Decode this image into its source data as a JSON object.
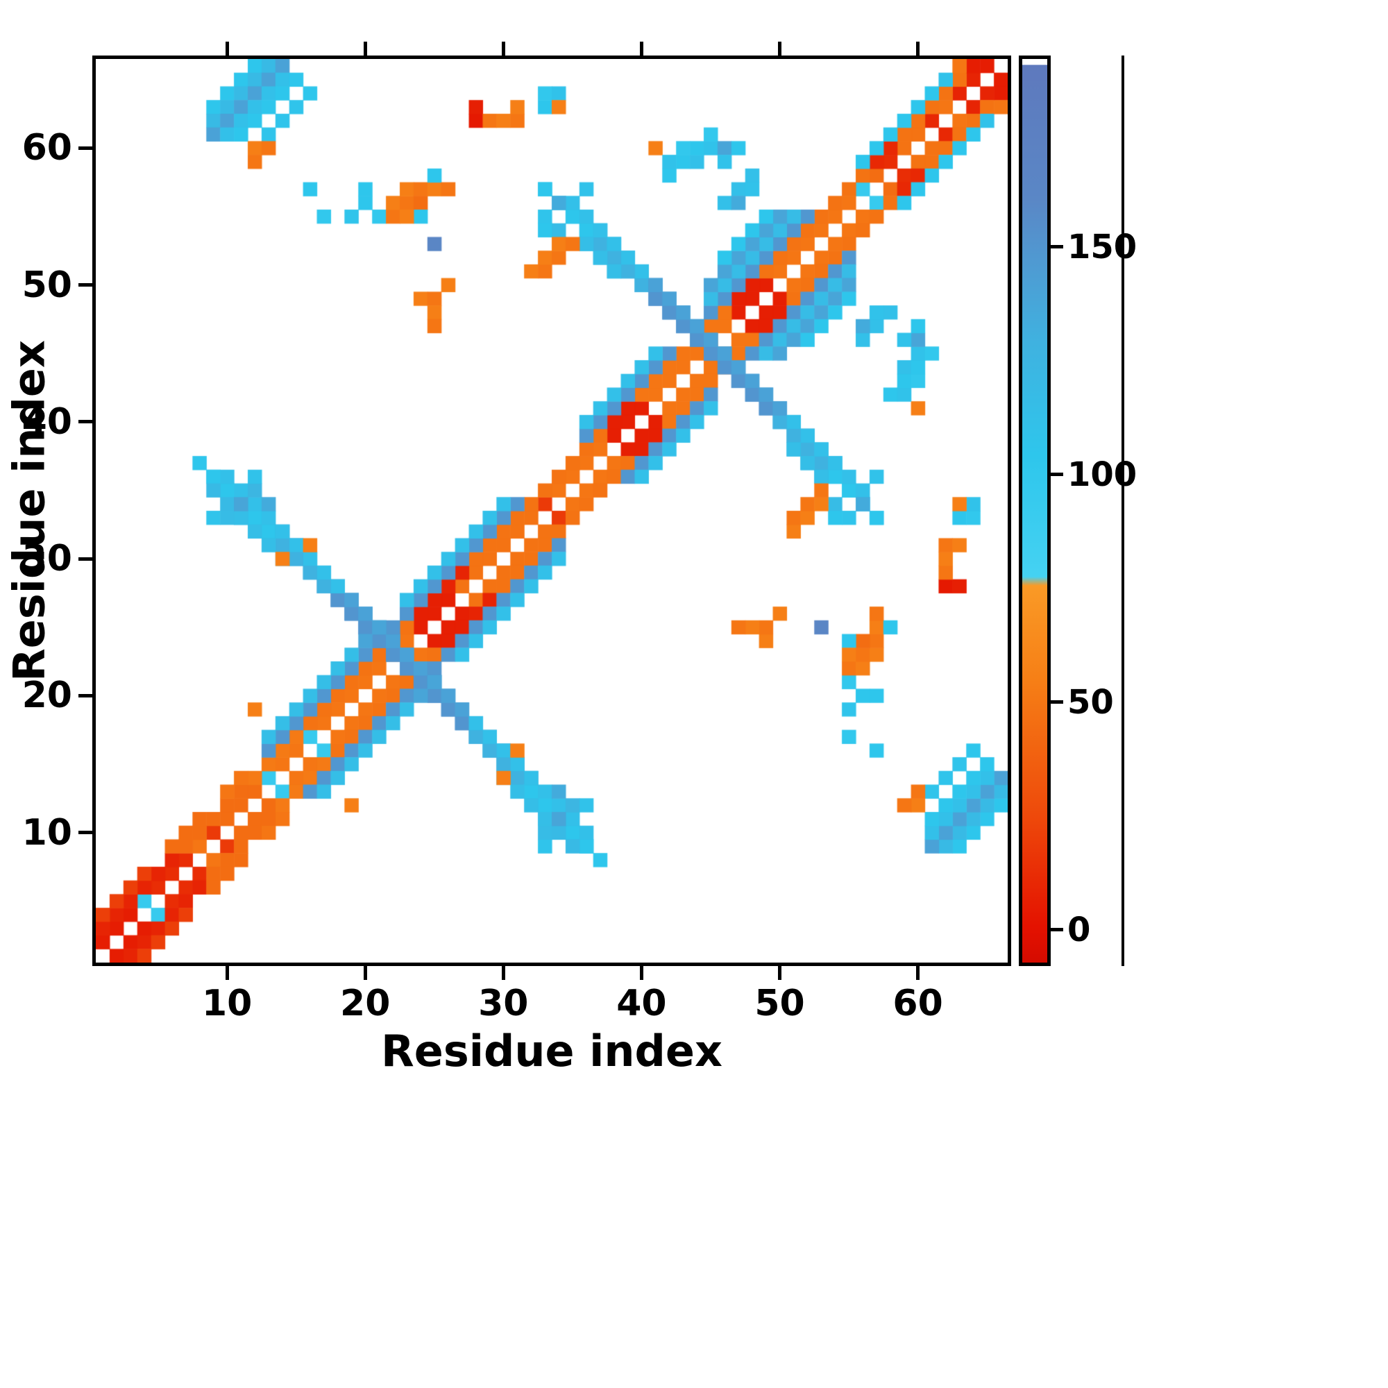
{
  "figure": {
    "background": "#ffffff",
    "frame_color": "#000000"
  },
  "chart_data": {
    "type": "heatmap",
    "title": "",
    "xlabel": "Residue index",
    "ylabel": "Residue index",
    "n_residues": 66,
    "x_range": [
      0.5,
      66.5
    ],
    "y_range": [
      0.5,
      66.5
    ],
    "x_ticks": [
      10,
      20,
      30,
      40,
      50,
      60
    ],
    "y_ticks": [
      10,
      20,
      30,
      40,
      50,
      60
    ],
    "grid": false,
    "symmetric": true,
    "background_value_color": "#ffffff",
    "colorbar": {
      "position": "right",
      "vmin": -8,
      "vmax": 192,
      "ticks": [
        0,
        50,
        100,
        150
      ]
    },
    "colormap_stops": [
      [
        -8,
        "#d50b00"
      ],
      [
        0,
        "#e41200"
      ],
      [
        25,
        "#ee4a0b"
      ],
      [
        55,
        "#f67f16"
      ],
      [
        76,
        "#fa9a26"
      ],
      [
        78,
        "#45d2f2"
      ],
      [
        105,
        "#2ec6ec"
      ],
      [
        130,
        "#3fb2e0"
      ],
      [
        148,
        "#4f9ad2"
      ],
      [
        162,
        "#5a87c6"
      ],
      [
        192,
        "#5e79bd"
      ]
    ],
    "cells": {
      "encoding": "runs: [type,i,j,n,value]; type 0=diagonal run (i+k,j+k), 1=antidiagonal run (i+k,j-k), 2=single point; matrix is symmetric, each cell mirrored across the diagonal",
      "runs": [
        [
          0,
          1,
          2,
          3,
          5
        ],
        [
          0,
          4,
          5,
          1,
          95
        ],
        [
          0,
          5,
          6,
          3,
          12
        ],
        [
          0,
          8,
          9,
          1,
          50
        ],
        [
          0,
          9,
          10,
          1,
          18
        ],
        [
          0,
          10,
          11,
          3,
          45
        ],
        [
          0,
          13,
          14,
          1,
          95
        ],
        [
          0,
          14,
          15,
          2,
          50
        ],
        [
          0,
          16,
          17,
          1,
          95
        ],
        [
          0,
          17,
          18,
          7,
          50
        ],
        [
          0,
          24,
          25,
          3,
          6
        ],
        [
          0,
          27,
          28,
          6,
          48
        ],
        [
          0,
          33,
          34,
          1,
          18
        ],
        [
          0,
          34,
          35,
          4,
          50
        ],
        [
          0,
          38,
          39,
          3,
          6
        ],
        [
          0,
          41,
          42,
          6,
          50
        ],
        [
          0,
          47,
          48,
          3,
          6
        ],
        [
          0,
          50,
          51,
          6,
          50
        ],
        [
          0,
          56,
          57,
          1,
          95
        ],
        [
          0,
          57,
          58,
          1,
          45
        ],
        [
          0,
          58,
          59,
          1,
          12
        ],
        [
          0,
          59,
          60,
          2,
          48
        ],
        [
          0,
          61,
          62,
          1,
          10
        ],
        [
          0,
          62,
          63,
          1,
          50
        ],
        [
          0,
          63,
          64,
          1,
          8
        ],
        [
          0,
          64,
          65,
          1,
          8
        ],
        [
          0,
          65,
          66,
          1,
          5
        ],
        [
          0,
          1,
          3,
          6,
          8
        ],
        [
          0,
          7,
          9,
          5,
          45
        ],
        [
          0,
          12,
          14,
          4,
          52
        ],
        [
          0,
          16,
          18,
          8,
          48
        ],
        [
          0,
          24,
          26,
          2,
          6
        ],
        [
          0,
          26,
          28,
          2,
          8
        ],
        [
          0,
          28,
          30,
          10,
          48
        ],
        [
          0,
          38,
          40,
          2,
          6
        ],
        [
          0,
          40,
          42,
          7,
          50
        ],
        [
          0,
          47,
          49,
          2,
          6
        ],
        [
          0,
          49,
          51,
          8,
          48
        ],
        [
          0,
          57,
          59,
          2,
          10
        ],
        [
          0,
          59,
          61,
          5,
          48
        ],
        [
          0,
          64,
          66,
          1,
          5
        ],
        [
          0,
          1,
          4,
          4,
          20
        ],
        [
          0,
          6,
          9,
          3,
          45
        ],
        [
          0,
          10,
          13,
          2,
          50
        ],
        [
          0,
          14,
          17,
          2,
          48
        ],
        [
          1,
          8,
          37,
          5,
          105
        ],
        [
          1,
          13,
          32,
          4,
          130
        ],
        [
          1,
          17,
          28,
          11,
          152
        ],
        [
          1,
          28,
          17,
          4,
          130
        ],
        [
          1,
          32,
          13,
          5,
          105
        ],
        [
          1,
          10,
          36,
          4,
          112
        ],
        [
          1,
          14,
          32,
          14,
          142
        ],
        [
          1,
          28,
          18,
          5,
          112
        ],
        [
          1,
          9,
          35,
          3,
          120
        ],
        [
          1,
          30,
          14,
          4,
          115
        ],
        [
          2,
          9,
          33,
          1,
          108
        ],
        [
          2,
          10,
          33,
          1,
          118
        ],
        [
          2,
          11,
          34,
          1,
          140
        ],
        [
          2,
          12,
          35,
          1,
          125
        ],
        [
          2,
          12,
          36,
          1,
          110
        ],
        [
          2,
          13,
          34,
          1,
          135
        ],
        [
          0,
          13,
          16,
          8,
          150
        ],
        [
          0,
          13,
          17,
          7,
          115
        ],
        [
          0,
          22,
          25,
          10,
          150
        ],
        [
          0,
          23,
          27,
          8,
          112
        ],
        [
          0,
          20,
          24,
          2,
          140
        ],
        [
          2,
          14,
          30,
          1,
          55
        ],
        [
          2,
          12,
          19,
          1,
          55
        ],
        [
          2,
          16,
          31,
          1,
          55
        ],
        [
          1,
          33,
          57,
          4,
          105
        ],
        [
          1,
          37,
          53,
          4,
          130
        ],
        [
          1,
          41,
          49,
          9,
          152
        ],
        [
          1,
          50,
          40,
          4,
          130
        ],
        [
          1,
          54,
          36,
          4,
          105
        ],
        [
          1,
          35,
          56,
          4,
          112
        ],
        [
          1,
          39,
          52,
          12,
          142
        ],
        [
          1,
          51,
          40,
          4,
          112
        ],
        [
          1,
          36,
          53,
          3,
          120
        ],
        [
          1,
          51,
          38,
          3,
          115
        ],
        [
          2,
          33,
          55,
          1,
          108
        ],
        [
          2,
          34,
          54,
          1,
          118
        ],
        [
          2,
          34,
          56,
          1,
          135
        ],
        [
          2,
          36,
          57,
          1,
          110
        ],
        [
          2,
          33,
          54,
          1,
          105
        ],
        [
          0,
          36,
          39,
          7,
          150
        ],
        [
          0,
          36,
          40,
          6,
          112
        ],
        [
          0,
          45,
          48,
          8,
          150
        ],
        [
          0,
          45,
          49,
          7,
          118
        ],
        [
          0,
          45,
          50,
          6,
          140
        ],
        [
          0,
          46,
          52,
          4,
          105
        ],
        [
          0,
          46,
          56,
          3,
          112
        ],
        [
          2,
          47,
          56,
          1,
          135
        ],
        [
          2,
          48,
          57,
          1,
          110
        ],
        [
          2,
          41,
          60,
          1,
          55
        ],
        [
          2,
          42,
          58,
          1,
          105
        ],
        [
          2,
          42,
          59,
          1,
          110
        ],
        [
          2,
          43,
          59,
          1,
          105
        ],
        [
          2,
          43,
          60,
          1,
          100
        ],
        [
          2,
          44,
          59,
          1,
          112
        ],
        [
          2,
          44,
          60,
          1,
          105
        ],
        [
          2,
          45,
          60,
          1,
          110
        ],
        [
          2,
          45,
          61,
          1,
          100
        ],
        [
          2,
          46,
          60,
          1,
          140
        ],
        [
          2,
          46,
          59,
          1,
          110
        ],
        [
          2,
          47,
          60,
          1,
          105
        ],
        [
          2,
          24,
          49,
          1,
          55
        ],
        [
          2,
          25,
          49,
          1,
          50
        ],
        [
          2,
          25,
          48,
          1,
          55
        ],
        [
          2,
          25,
          47,
          1,
          50
        ],
        [
          2,
          26,
          50,
          1,
          55
        ],
        [
          2,
          20,
          56,
          1,
          105
        ],
        [
          2,
          21,
          55,
          1,
          100
        ],
        [
          2,
          22,
          55,
          1,
          50
        ],
        [
          2,
          22,
          56,
          1,
          55
        ],
        [
          2,
          23,
          56,
          1,
          50
        ],
        [
          2,
          23,
          57,
          1,
          55
        ],
        [
          2,
          24,
          57,
          1,
          50
        ],
        [
          2,
          24,
          56,
          1,
          45
        ],
        [
          2,
          25,
          57,
          1,
          55
        ],
        [
          2,
          25,
          58,
          1,
          105
        ],
        [
          2,
          25,
          53,
          1,
          165
        ],
        [
          2,
          24,
          55,
          1,
          105
        ],
        [
          2,
          26,
          57,
          1,
          50
        ],
        [
          2,
          23,
          55,
          1,
          55
        ],
        [
          2,
          20,
          57,
          1,
          105
        ],
        [
          2,
          19,
          55,
          1,
          108
        ],
        [
          2,
          32,
          51,
          1,
          55
        ],
        [
          2,
          33,
          51,
          1,
          50
        ],
        [
          2,
          33,
          52,
          1,
          55
        ],
        [
          2,
          34,
          52,
          1,
          50
        ],
        [
          2,
          34,
          53,
          1,
          55
        ],
        [
          2,
          35,
          53,
          1,
          50
        ],
        [
          2,
          28,
          62,
          1,
          3
        ],
        [
          2,
          28,
          63,
          1,
          6
        ],
        [
          2,
          29,
          62,
          1,
          50
        ],
        [
          2,
          30,
          62,
          1,
          55
        ],
        [
          2,
          31,
          62,
          1,
          50
        ],
        [
          2,
          31,
          63,
          1,
          55
        ],
        [
          2,
          33,
          63,
          1,
          105
        ],
        [
          2,
          33,
          64,
          1,
          100
        ],
        [
          2,
          34,
          64,
          1,
          110
        ],
        [
          2,
          34,
          63,
          1,
          55
        ],
        [
          0,
          9,
          63,
          4,
          105
        ],
        [
          0,
          9,
          62,
          5,
          120
        ],
        [
          0,
          9,
          61,
          6,
          142
        ],
        [
          0,
          10,
          61,
          5,
          112
        ],
        [
          0,
          11,
          61,
          5,
          105
        ],
        [
          0,
          13,
          61,
          3,
          108
        ],
        [
          2,
          12,
          60,
          1,
          55
        ],
        [
          2,
          13,
          60,
          1,
          50
        ],
        [
          2,
          12,
          59,
          1,
          50
        ],
        [
          2,
          16,
          64,
          1,
          105
        ],
        [
          2,
          16,
          57,
          1,
          105
        ],
        [
          2,
          17,
          55,
          1,
          100
        ],
        [
          0,
          56,
          59,
          5,
          105
        ],
        [
          2,
          61,
          64,
          1,
          105
        ],
        [
          2,
          62,
          65,
          1,
          110
        ],
        [
          2,
          63,
          66,
          1,
          50
        ]
      ]
    }
  }
}
